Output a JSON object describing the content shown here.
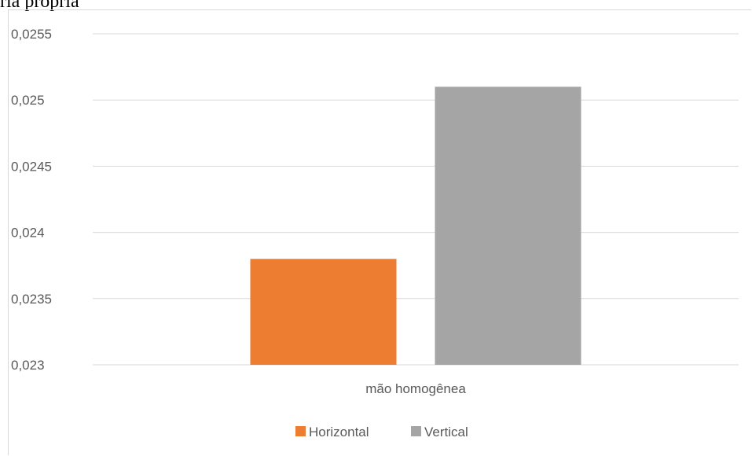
{
  "caption_fragment": "ria própria",
  "colors": {
    "horizontal": "#ed7d31",
    "vertical": "#a5a5a5",
    "gridline": "#d9d9d9",
    "axis_text": "#595959"
  },
  "chart_data": {
    "type": "bar",
    "categories": [
      "mão homogênea"
    ],
    "series": [
      {
        "name": "Horizontal",
        "values": [
          0.0238
        ]
      },
      {
        "name": "Vertical",
        "values": [
          0.0251
        ]
      }
    ],
    "ylim": [
      0.023,
      0.0255
    ],
    "yticks": [
      0.023,
      0.0235,
      0.024,
      0.0245,
      0.025,
      0.0255
    ],
    "ytick_labels": [
      "0,023",
      "0,0235",
      "0,024",
      "0,0245",
      "0,025",
      "0,0255"
    ],
    "grid": true,
    "legend_position": "bottom"
  }
}
